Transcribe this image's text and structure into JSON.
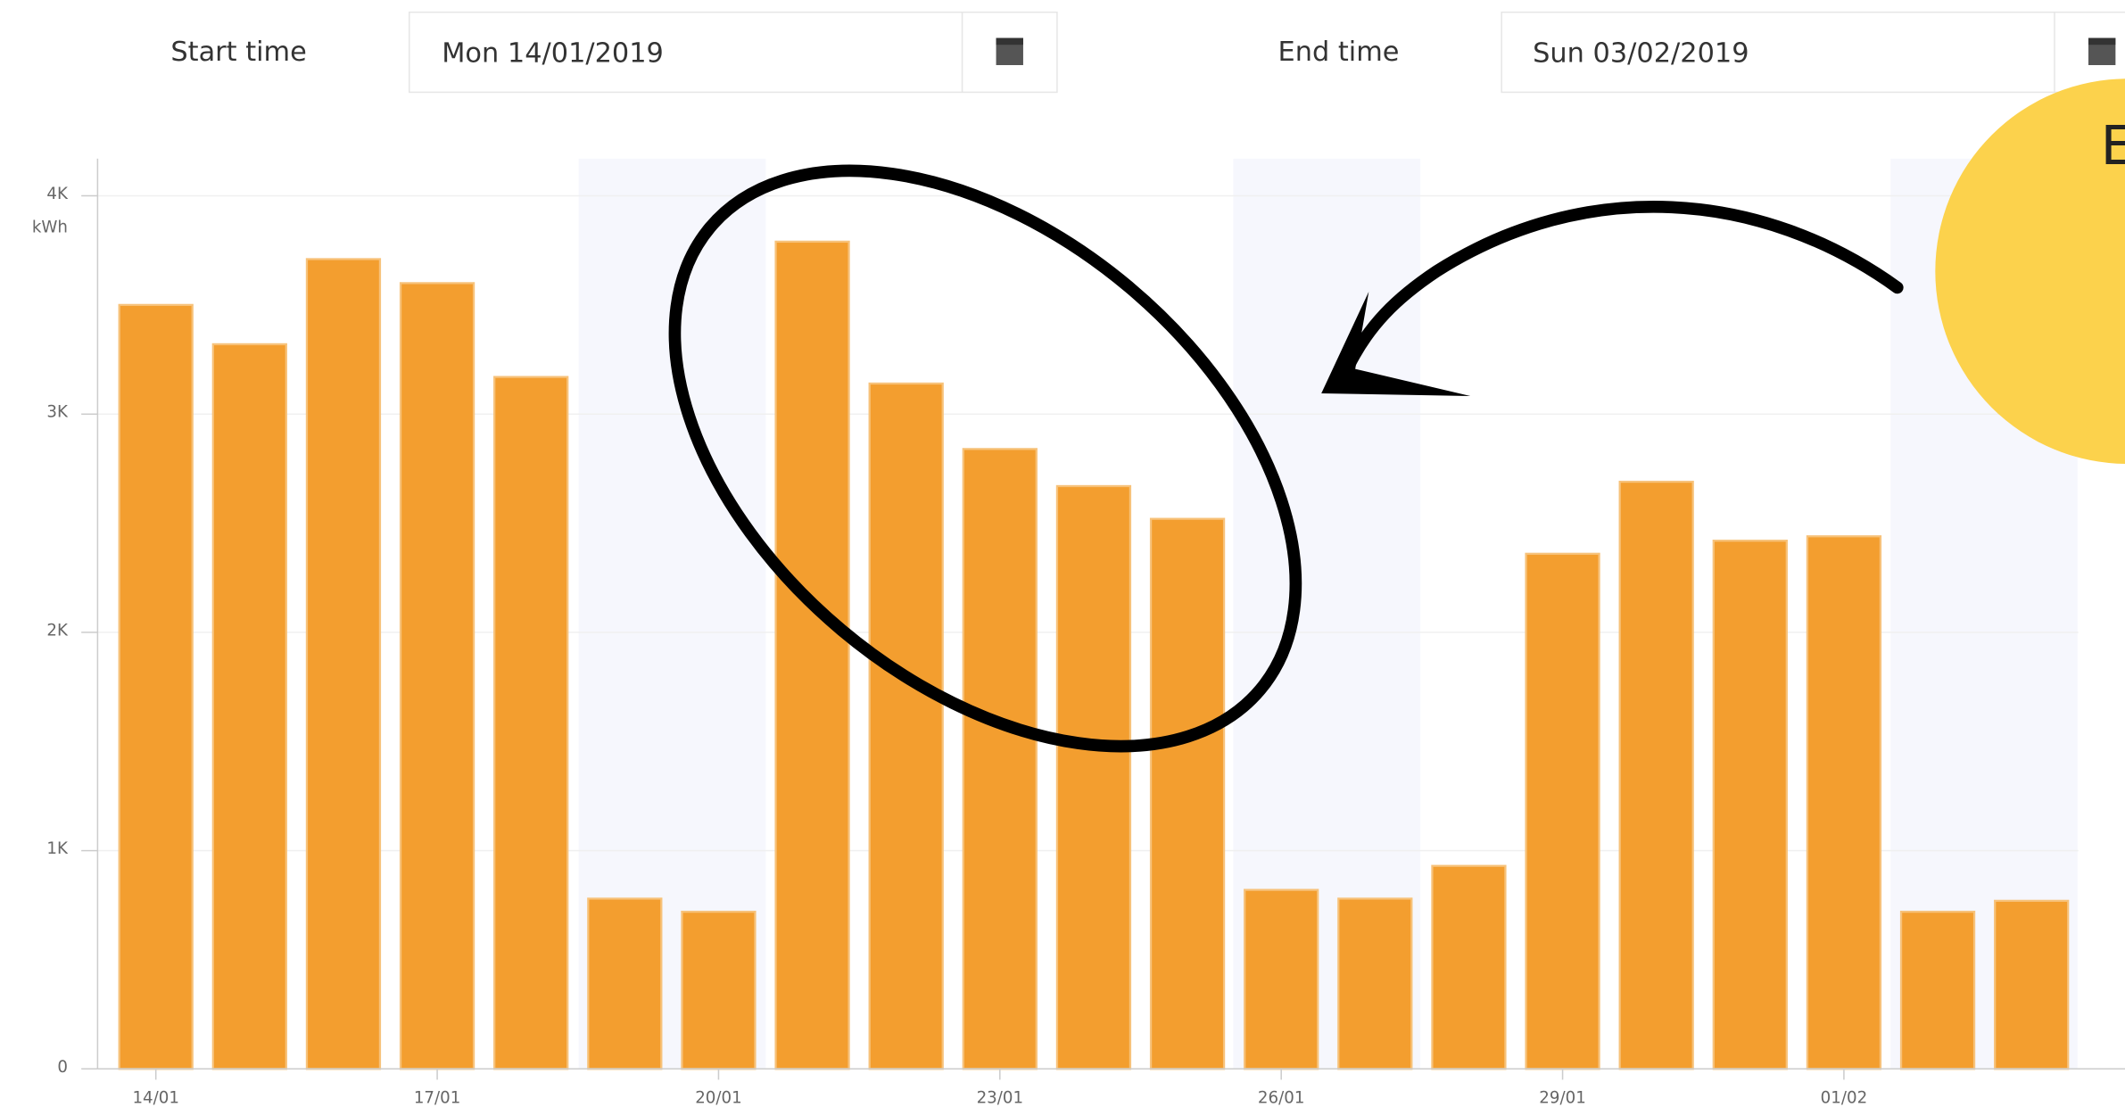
{
  "controls": {
    "start_label": "Start time",
    "start_value": "Mon 14/01/2019",
    "end_label": "End time",
    "end_value": "Sun 03/02/2019"
  },
  "callout": {
    "text": "E"
  },
  "chart_data": {
    "type": "bar",
    "unit": "kWh",
    "color": "#f39e2f",
    "categories": [
      "14/01",
      null,
      null,
      "17/01",
      null,
      null,
      "20/01",
      null,
      null,
      "23/01",
      null,
      null,
      "26/01",
      null,
      null,
      "29/01",
      null,
      null,
      "01/02",
      null,
      null
    ],
    "values": [
      3500,
      3320,
      3710,
      3600,
      3170,
      780,
      720,
      3790,
      3140,
      2840,
      2670,
      2520,
      820,
      780,
      930,
      2360,
      2690,
      2420,
      2440,
      720,
      770
    ],
    "ylim": [
      0,
      4170
    ],
    "yticks": [
      0,
      {
        "value": 1000,
        "label": "1K"
      },
      {
        "value": 2000,
        "label": "2K"
      },
      {
        "value": 3000,
        "label": "3K"
      },
      {
        "value": 4000,
        "label": "4K"
      }
    ],
    "grid": true
  }
}
